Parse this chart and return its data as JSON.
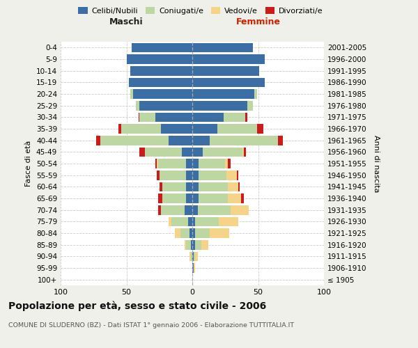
{
  "age_groups": [
    "100+",
    "95-99",
    "90-94",
    "85-89",
    "80-84",
    "75-79",
    "70-74",
    "65-69",
    "60-64",
    "55-59",
    "50-54",
    "45-49",
    "40-44",
    "35-39",
    "30-34",
    "25-29",
    "20-24",
    "15-19",
    "10-14",
    "5-9",
    "0-4"
  ],
  "birth_years": [
    "≤ 1905",
    "1906-1910",
    "1911-1915",
    "1916-1920",
    "1921-1925",
    "1926-1930",
    "1931-1935",
    "1936-1940",
    "1941-1945",
    "1946-1950",
    "1951-1955",
    "1956-1960",
    "1961-1965",
    "1966-1970",
    "1971-1975",
    "1976-1980",
    "1981-1985",
    "1986-1990",
    "1991-1995",
    "1996-2000",
    "2001-2005"
  ],
  "colors": {
    "celibi": "#3a6ea5",
    "coniugati": "#bdd7a3",
    "vedovi": "#f5d48a",
    "divorziati": "#cc1b1b"
  },
  "males": {
    "celibi": [
      0,
      0,
      0,
      1,
      2,
      3,
      6,
      5,
      5,
      5,
      5,
      8,
      18,
      24,
      28,
      40,
      45,
      48,
      47,
      50,
      46
    ],
    "coniugati": [
      0,
      0,
      1,
      4,
      7,
      13,
      18,
      18,
      18,
      20,
      21,
      28,
      52,
      30,
      12,
      3,
      2,
      0,
      0,
      0,
      0
    ],
    "vedovi": [
      0,
      0,
      1,
      1,
      4,
      2,
      0,
      0,
      0,
      0,
      1,
      0,
      0,
      0,
      0,
      0,
      0,
      0,
      0,
      0,
      0
    ],
    "divorziati": [
      0,
      0,
      0,
      0,
      0,
      0,
      2,
      3,
      2,
      2,
      1,
      4,
      3,
      2,
      1,
      0,
      0,
      0,
      0,
      0,
      0
    ]
  },
  "females": {
    "celibi": [
      0,
      1,
      1,
      2,
      2,
      2,
      4,
      5,
      5,
      5,
      5,
      8,
      13,
      19,
      24,
      42,
      47,
      55,
      51,
      55,
      46
    ],
    "coniugati": [
      0,
      0,
      1,
      5,
      11,
      18,
      25,
      22,
      22,
      21,
      20,
      30,
      52,
      30,
      16,
      4,
      2,
      0,
      0,
      0,
      0
    ],
    "vedovi": [
      0,
      1,
      2,
      5,
      15,
      15,
      14,
      10,
      8,
      8,
      2,
      1,
      0,
      0,
      0,
      0,
      0,
      0,
      0,
      0,
      0
    ],
    "divorziati": [
      0,
      0,
      0,
      0,
      0,
      0,
      0,
      2,
      1,
      1,
      2,
      2,
      4,
      5,
      2,
      0,
      0,
      0,
      0,
      0,
      0
    ]
  },
  "title": "Popolazione per età, sesso e stato civile - 2006",
  "subtitle": "COMUNE DI SLUDERNO (BZ) - Dati ISTAT 1° gennaio 2006 - Elaborazione TUTTITALIA.IT",
  "xlabel_left": "Maschi",
  "xlabel_right": "Femmine",
  "ylabel_left": "Fasce di età",
  "ylabel_right": "Anni di nascita",
  "xlim": 100,
  "legend_labels": [
    "Celibi/Nubili",
    "Coniugati/e",
    "Vedovi/e",
    "Divorziati/e"
  ],
  "bg_color": "#f0f0eb",
  "plot_bg": "#ffffff",
  "grid_color": "#cccccc"
}
